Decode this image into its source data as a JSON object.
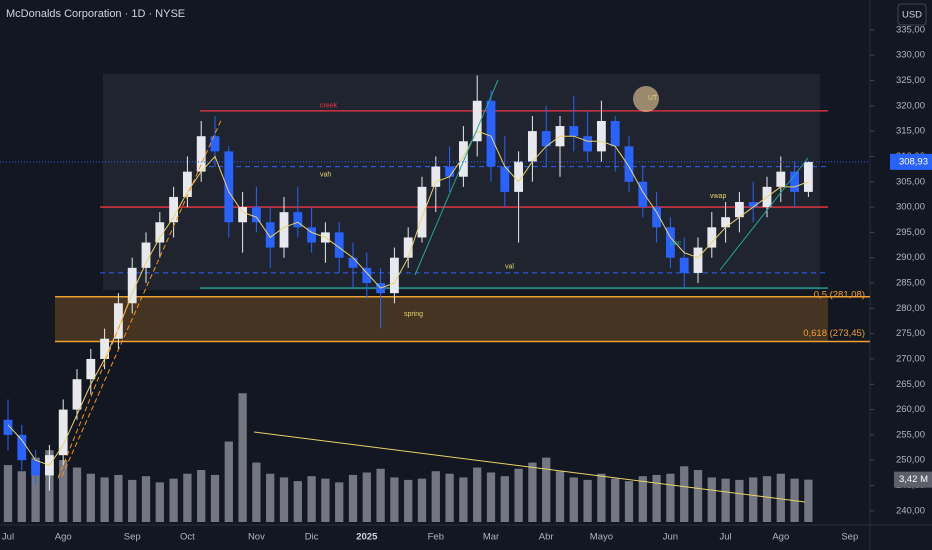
{
  "header": {
    "title": "McDonalds Corporation · 1D · NYSE",
    "currency_button": "USD"
  },
  "chart_data": {
    "type": "candlestick",
    "categories": [
      "Jul",
      null,
      null,
      null,
      "Ago",
      null,
      null,
      null,
      null,
      "Sep",
      null,
      null,
      null,
      "Oct",
      null,
      null,
      null,
      null,
      "Nov",
      null,
      null,
      null,
      "Dic",
      null,
      null,
      null,
      "2025",
      null,
      null,
      null,
      null,
      "Feb",
      null,
      null,
      null,
      "Mar",
      null,
      null,
      null,
      "Abr",
      null,
      null,
      null,
      "Mayo",
      null,
      null,
      null,
      null,
      "Jun",
      null,
      null,
      null,
      "Jul",
      null,
      null,
      null,
      "Ago",
      null,
      null,
      null,
      null,
      "Sep"
    ],
    "open": [
      258,
      255,
      250,
      247,
      251,
      260,
      266,
      270,
      274,
      281,
      288,
      293,
      297,
      302,
      307,
      314,
      311,
      297,
      300,
      297,
      292,
      299,
      296,
      293,
      295,
      290,
      288,
      285,
      283,
      290,
      294,
      304,
      308,
      306,
      313,
      321,
      308,
      303,
      309,
      315,
      312,
      316,
      314,
      311,
      317,
      312,
      305,
      300,
      296,
      290,
      287,
      292,
      296,
      298,
      301,
      300,
      304,
      307,
      303,
      null,
      null,
      null
    ],
    "high": [
      262,
      257,
      252,
      253,
      262,
      268,
      272,
      276,
      283,
      290,
      295,
      299,
      304,
      310,
      317,
      318,
      312,
      303,
      304,
      300,
      302,
      304,
      300,
      297,
      297,
      293,
      291,
      288,
      292,
      296,
      306,
      310,
      312,
      316,
      326,
      323,
      314,
      311,
      318,
      320,
      318,
      322,
      319,
      321,
      318,
      314,
      308,
      303,
      298,
      294,
      294,
      299,
      301,
      303,
      305,
      306,
      310,
      309,
      309,
      null,
      null,
      null
    ],
    "low": [
      252,
      248,
      245,
      244,
      249,
      258,
      263,
      268,
      272,
      279,
      285,
      290,
      294,
      300,
      305,
      308,
      294,
      291,
      295,
      288,
      290,
      294,
      291,
      289,
      287,
      284,
      282,
      276,
      281,
      288,
      293,
      299,
      303,
      304,
      310,
      305,
      300,
      293,
      305,
      308,
      306,
      311,
      309,
      309,
      307,
      303,
      298,
      293,
      288,
      284,
      285,
      290,
      293,
      295,
      297,
      298,
      301,
      300,
      302,
      null,
      null,
      null
    ],
    "close": [
      255,
      250,
      247,
      251,
      260,
      266,
      270,
      274,
      281,
      288,
      293,
      297,
      302,
      307,
      314,
      311,
      297,
      300,
      297,
      292,
      299,
      296,
      293,
      295,
      290,
      288,
      285,
      283,
      290,
      294,
      304,
      308,
      306,
      313,
      321,
      308,
      303,
      309,
      315,
      312,
      316,
      314,
      311,
      317,
      312,
      305,
      300,
      296,
      290,
      287,
      292,
      296,
      298,
      301,
      300,
      304,
      307,
      303,
      308.93,
      null,
      null,
      null
    ],
    "vwap": [
      257,
      254,
      250,
      249,
      253,
      259,
      265,
      270,
      276,
      283,
      289,
      294,
      298,
      303,
      307,
      310,
      303,
      299,
      298,
      294,
      296,
      297,
      295,
      294,
      292,
      290,
      287,
      284,
      285,
      290,
      298,
      305,
      306,
      310,
      315,
      314,
      308,
      305,
      309,
      312,
      314,
      314,
      313,
      313,
      312,
      308,
      303,
      299,
      294,
      291,
      290,
      293,
      296,
      298,
      300,
      302,
      304,
      304,
      305,
      null,
      null,
      null
    ],
    "volume": [
      4.6,
      4.1,
      5.2,
      5.8,
      5.0,
      4.4,
      3.9,
      3.6,
      3.8,
      3.4,
      3.7,
      3.2,
      3.5,
      3.9,
      4.2,
      3.8,
      6.5,
      10.4,
      4.8,
      3.9,
      3.6,
      3.3,
      3.7,
      3.5,
      3.2,
      3.8,
      4.0,
      4.3,
      3.6,
      3.4,
      3.5,
      4.1,
      3.9,
      3.6,
      4.4,
      4.0,
      3.7,
      4.3,
      4.8,
      5.2,
      4.1,
      3.6,
      3.4,
      3.9,
      3.5,
      3.3,
      3.7,
      3.8,
      3.9,
      4.5,
      4.2,
      3.6,
      3.5,
      3.4,
      3.6,
      3.7,
      3.9,
      3.5,
      3.42,
      null,
      null,
      null
    ],
    "up_color": "#e8e9ee",
    "down_color": "#2962ff",
    "vwap_color": "#e8d36a",
    "volume_color": "#9598a1",
    "ylim": [
      237.8,
      340.9
    ],
    "vlim": [
      0,
      10.5
    ],
    "yticks": [
      {
        "value": 240,
        "label": "240,00"
      },
      {
        "value": 245,
        "label": "245,00"
      },
      {
        "value": 250,
        "label": "250,00"
      },
      {
        "value": 255,
        "label": "255,00"
      },
      {
        "value": 260,
        "label": "260,00"
      },
      {
        "value": 265,
        "label": "265,00"
      },
      {
        "value": 270,
        "label": "270,00"
      },
      {
        "value": 275,
        "label": "275,00"
      },
      {
        "value": 280,
        "label": "280,00"
      },
      {
        "value": 285,
        "label": "285,00"
      },
      {
        "value": 290,
        "label": "290,00"
      },
      {
        "value": 295,
        "label": "295,00"
      },
      {
        "value": 300,
        "label": "300,00"
      },
      {
        "value": 305,
        "label": "305,00"
      },
      {
        "value": 310,
        "label": "310,00"
      },
      {
        "value": 315,
        "label": "315,00"
      },
      {
        "value": 320,
        "label": "320,00"
      },
      {
        "value": 325,
        "label": "325,00"
      },
      {
        "value": 330,
        "label": "330,00"
      },
      {
        "value": 335,
        "label": "335,00"
      }
    ],
    "levels": [
      {
        "label": "creek",
        "value": 319,
        "color": "#f23645",
        "dash": false
      },
      {
        "label": "vah",
        "value": 308,
        "color": "#2962ff",
        "dash": true
      },
      {
        "value": 300,
        "color": "#f23645",
        "dash": false
      },
      {
        "label": "val",
        "value": 287,
        "color": "#2962ff",
        "dash": true
      },
      {
        "value": 284,
        "color": "#26a69a",
        "dash": false
      }
    ],
    "fib": [
      {
        "label": "0,5 (281,08)",
        "value": 281.08
      },
      {
        "label": "0,618 (273,45)",
        "value": 273.45
      }
    ],
    "annotations": [
      "spring",
      "UT",
      "vwap",
      "poc"
    ],
    "last_price": {
      "value": 308.93,
      "label": "308,93"
    },
    "last_volume": {
      "value": 3.42,
      "label": "3,42 M"
    }
  }
}
